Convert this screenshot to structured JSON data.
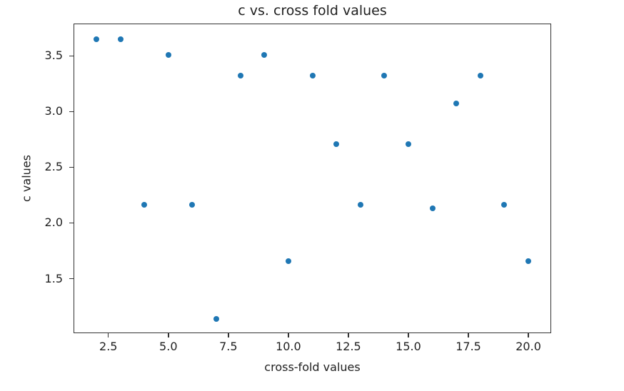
{
  "chart_data": {
    "type": "scatter",
    "title": "c vs. cross fold values",
    "xlabel": "cross-fold values",
    "ylabel": "c values",
    "x": [
      2,
      3,
      4,
      5,
      6,
      7,
      8,
      9,
      10,
      11,
      12,
      13,
      14,
      15,
      16,
      17,
      18,
      19,
      20
    ],
    "y": [
      3.65,
      3.65,
      2.16,
      3.51,
      2.16,
      1.14,
      3.32,
      3.51,
      1.66,
      3.32,
      2.71,
      2.16,
      3.32,
      2.71,
      2.13,
      3.07,
      3.32,
      2.16,
      1.66
    ],
    "xticks": [
      2.5,
      5.0,
      7.5,
      10.0,
      12.5,
      15.0,
      17.5,
      20.0
    ],
    "xtick_labels": [
      "2.5",
      "5.0",
      "7.5",
      "10.0",
      "12.5",
      "15.0",
      "17.5",
      "20.0"
    ],
    "yticks": [
      1.5,
      2.0,
      2.5,
      3.0,
      3.5
    ],
    "ytick_labels": [
      "1.5",
      "2.0",
      "2.5",
      "3.0",
      "3.5"
    ],
    "xlim": [
      1.05,
      20.95
    ],
    "ylim": [
      1.01,
      3.79
    ],
    "grid": false,
    "legend_position": "none",
    "marker_color": "#1f77b4",
    "spine_color": "#333333",
    "text_color": "#1f1f1f",
    "background_color": "#ffffff"
  }
}
